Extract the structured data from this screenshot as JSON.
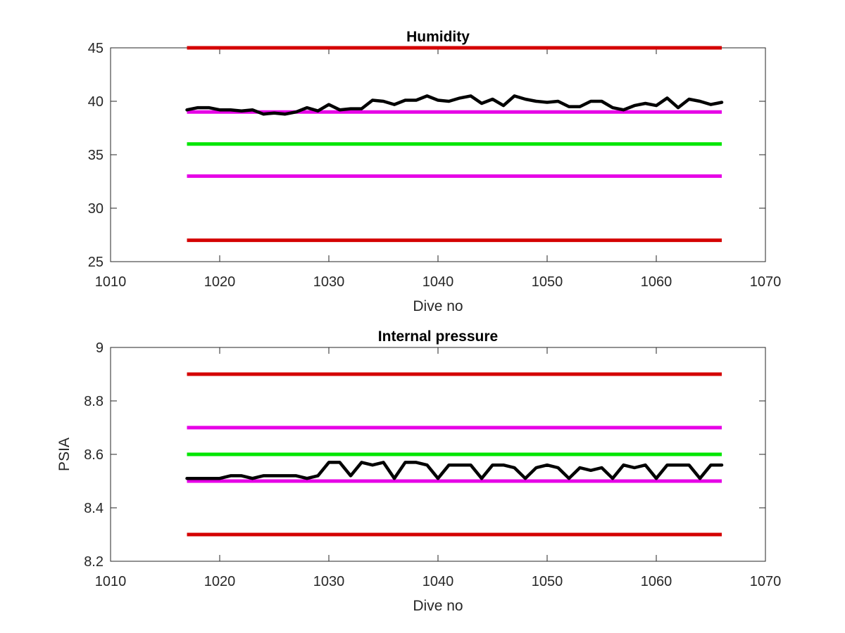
{
  "chart_data": [
    {
      "type": "line",
      "title": "Humidity",
      "xlabel": "Dive no",
      "ylabel": "",
      "xlim": [
        1010,
        1070
      ],
      "ylim": [
        25,
        45
      ],
      "xticks": [
        1010,
        1020,
        1030,
        1040,
        1050,
        1060,
        1070
      ],
      "yticks": [
        25,
        30,
        35,
        40,
        45
      ],
      "grid": false,
      "thresholds": [
        {
          "y": 45,
          "x": [
            1017,
            1066
          ],
          "color": "#d40000"
        },
        {
          "y": 39,
          "x": [
            1017,
            1066
          ],
          "color": "#e600e6"
        },
        {
          "y": 36,
          "x": [
            1017,
            1066
          ],
          "color": "#00e600"
        },
        {
          "y": 33,
          "x": [
            1017,
            1066
          ],
          "color": "#e600e6"
        },
        {
          "y": 27,
          "x": [
            1017,
            1066
          ],
          "color": "#d40000"
        }
      ],
      "series": [
        {
          "color": "#000000",
          "x": [
            1017,
            1018,
            1019,
            1020,
            1021,
            1022,
            1023,
            1024,
            1025,
            1026,
            1027,
            1028,
            1029,
            1030,
            1031,
            1032,
            1033,
            1034,
            1035,
            1036,
            1037,
            1038,
            1039,
            1040,
            1041,
            1042,
            1043,
            1044,
            1045,
            1046,
            1047,
            1048,
            1049,
            1050,
            1051,
            1052,
            1053,
            1054,
            1055,
            1056,
            1057,
            1058,
            1059,
            1060,
            1061,
            1062,
            1063,
            1064,
            1065,
            1066
          ],
          "y": [
            39.2,
            39.4,
            39.4,
            39.2,
            39.2,
            39.1,
            39.2,
            38.8,
            38.9,
            38.8,
            39.0,
            39.4,
            39.1,
            39.7,
            39.2,
            39.3,
            39.3,
            40.1,
            40.0,
            39.7,
            40.1,
            40.1,
            40.5,
            40.1,
            40.0,
            40.3,
            40.5,
            39.8,
            40.2,
            39.6,
            40.5,
            40.2,
            40.0,
            39.9,
            40.0,
            39.5,
            39.5,
            40.0,
            40.0,
            39.4,
            39.2,
            39.6,
            39.8,
            39.6,
            40.3,
            39.4,
            40.2,
            40.0,
            39.7,
            39.9
          ]
        }
      ]
    },
    {
      "type": "line",
      "title": "Internal pressure",
      "xlabel": "Dive no",
      "ylabel": "PSIA",
      "xlim": [
        1010,
        1070
      ],
      "ylim": [
        8.2,
        9
      ],
      "xticks": [
        1010,
        1020,
        1030,
        1040,
        1050,
        1060,
        1070
      ],
      "yticks": [
        8.2,
        8.4,
        8.6,
        8.8,
        9
      ],
      "grid": false,
      "thresholds": [
        {
          "y": 8.9,
          "x": [
            1017,
            1066
          ],
          "color": "#d40000"
        },
        {
          "y": 8.7,
          "x": [
            1017,
            1066
          ],
          "color": "#e600e6"
        },
        {
          "y": 8.6,
          "x": [
            1017,
            1066
          ],
          "color": "#00e600"
        },
        {
          "y": 8.5,
          "x": [
            1017,
            1066
          ],
          "color": "#e600e6"
        },
        {
          "y": 8.3,
          "x": [
            1017,
            1066
          ],
          "color": "#d40000"
        }
      ],
      "series": [
        {
          "color": "#000000",
          "x": [
            1017,
            1018,
            1019,
            1020,
            1021,
            1022,
            1023,
            1024,
            1025,
            1026,
            1027,
            1028,
            1029,
            1030,
            1031,
            1032,
            1033,
            1034,
            1035,
            1036,
            1037,
            1038,
            1039,
            1040,
            1041,
            1042,
            1043,
            1044,
            1045,
            1046,
            1047,
            1048,
            1049,
            1050,
            1051,
            1052,
            1053,
            1054,
            1055,
            1056,
            1057,
            1058,
            1059,
            1060,
            1061,
            1062,
            1063,
            1064,
            1065,
            1066
          ],
          "y": [
            8.51,
            8.51,
            8.51,
            8.51,
            8.52,
            8.52,
            8.51,
            8.52,
            8.52,
            8.52,
            8.52,
            8.51,
            8.52,
            8.57,
            8.57,
            8.52,
            8.57,
            8.56,
            8.57,
            8.51,
            8.57,
            8.57,
            8.56,
            8.51,
            8.56,
            8.56,
            8.56,
            8.51,
            8.56,
            8.56,
            8.55,
            8.51,
            8.55,
            8.56,
            8.55,
            8.51,
            8.55,
            8.54,
            8.55,
            8.51,
            8.56,
            8.55,
            8.56,
            8.51,
            8.56,
            8.56,
            8.56,
            8.51,
            8.56,
            8.56
          ]
        }
      ]
    }
  ]
}
